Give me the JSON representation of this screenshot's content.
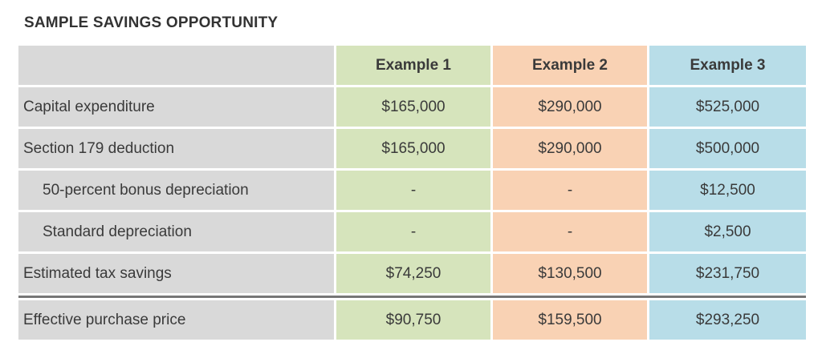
{
  "title": "SAMPLE SAVINGS OPPORTUNITY",
  "columns": [
    "Example 1",
    "Example 2",
    "Example 3"
  ],
  "colors": {
    "example1": "#d6e4bc",
    "example2": "#f9d2b4",
    "example3": "#b8dde8",
    "label": "#d9d9d9",
    "divider": "#767676"
  },
  "rows": [
    {
      "label": "Capital expenditure",
      "values": [
        "$165,000",
        "$290,000",
        "$525,000"
      ]
    },
    {
      "label": "Section 179 deduction",
      "values": [
        "$165,000",
        "$290,000",
        "$500,000"
      ]
    },
    {
      "label": "50-percent bonus depreciation",
      "values": [
        "-",
        "-",
        "$12,500"
      ]
    },
    {
      "label": "Standard depreciation",
      "values": [
        "-",
        "-",
        "$2,500"
      ]
    },
    {
      "label": "Estimated tax savings",
      "values": [
        "$74,250",
        "$130,500",
        "$231,750"
      ]
    },
    {
      "label": "Effective purchase price",
      "values": [
        "$90,750",
        "$159,500",
        "$293,250"
      ]
    }
  ]
}
